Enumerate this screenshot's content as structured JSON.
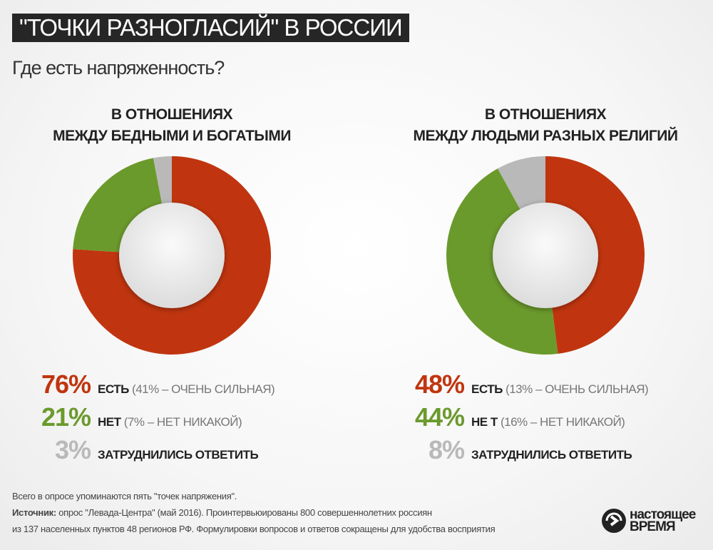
{
  "header": {
    "title": "\"ТОЧКИ РАЗНОГЛАСИЙ\" В РОССИИ",
    "subtitle": "Где есть напряженность?"
  },
  "colors": {
    "yes": "#c0350f",
    "no": "#6b9a2c",
    "unsure": "#b9b9b9"
  },
  "chart_data": [
    {
      "type": "pie",
      "title_line1": "В ОТНОШЕНИЯХ",
      "title_line2": "МЕЖДУ БЕДНЫМИ И БОГАТЫМИ",
      "categories": [
        "ЕСТЬ",
        "НЕТ",
        "ЗАТРУДНИЛИСЬ ОТВЕТИТЬ"
      ],
      "values": [
        76,
        21,
        3
      ],
      "labels": [
        "76%",
        "21%",
        "3%"
      ],
      "notes": [
        "(41% – ОЧЕНЬ СИЛЬНАЯ)",
        "(7% – НЕТ НИКАКОЙ)",
        ""
      ],
      "donut": true
    },
    {
      "type": "pie",
      "title_line1": "В ОТНОШЕНИЯХ",
      "title_line2": "МЕЖДУ ЛЮДЬМИ РАЗНЫХ РЕЛИГИЙ",
      "categories": [
        "ЕСТЬ",
        "НЕ Т",
        "ЗАТРУДНИЛИСЬ ОТВЕТИТЬ"
      ],
      "values": [
        48,
        44,
        8
      ],
      "labels": [
        "48%",
        "44%",
        "8%"
      ],
      "notes": [
        "(13% – ОЧЕНЬ СИЛЬНАЯ)",
        "(16% – НЕТ НИКАКОЙ)",
        ""
      ],
      "donut": true
    }
  ],
  "footer": {
    "note": "Всего в опросе упоминаются пять \"точек напряжения\".",
    "source_label": "Источник:",
    "source_line1": " опрос \"Левада-Центра\" (май 2016). Проинтервьюированы 800 совершеннолетних россиян",
    "source_line2": "из 137 населенных пунктов 48 регионов РФ. Формулировки вопросов и ответов сокращены для удобства восприятия"
  },
  "logo": {
    "line1": "настоящее",
    "line2": "время"
  }
}
